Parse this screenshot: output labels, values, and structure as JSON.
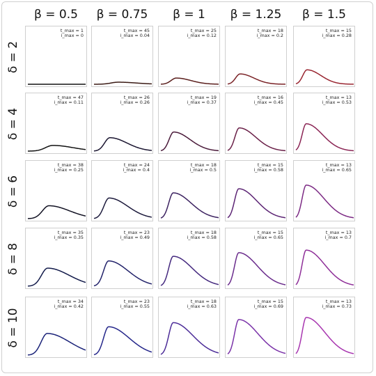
{
  "column_headers": [
    "β = 0.5",
    "β = 0.75",
    "β = 1",
    "β = 1.25",
    "β = 1.5"
  ],
  "row_headers": [
    "δ = 2",
    "δ = 4",
    "δ = 6",
    "δ = 8",
    "δ = 10"
  ],
  "colors": {
    "row_delta_2": [
      "#111111",
      "#3a1a14",
      "#5a1e1c",
      "#7a2226",
      "#992530"
    ],
    "row_delta_4": [
      "#111111",
      "#1a1530",
      "#4a1a3a",
      "#6a2048",
      "#8a2454"
    ],
    "row_delta_6": [
      "#111122",
      "#1c1a3c",
      "#3c2260",
      "#5c2474",
      "#7c2a84"
    ],
    "row_delta_8": [
      "#121a4a",
      "#22226a",
      "#44287e",
      "#6a2c8c",
      "#8e2e98"
    ],
    "row_delta_10": [
      "#1a2278",
      "#24268a",
      "#4c2c98",
      "#7a32a8",
      "#a836b0"
    ]
  },
  "chart_data": {
    "type": "line",
    "description_of_grid": "5x5 small multiples; columns vary beta, rows vary delta; each panel shows an epidemic-like curve i(t) with annotated peak time and peak value",
    "ylim": [
      0,
      1
    ],
    "panels": [
      {
        "row": "δ = 2",
        "col": "β = 0.5",
        "t_max_label": "t_max = 1",
        "i_max_label": "i_max = 0",
        "t_max": 1,
        "i_max": 0
      },
      {
        "row": "δ = 2",
        "col": "β = 0.75",
        "t_max_label": "t_max = 45",
        "i_max_label": "i_max = 0.04",
        "t_max": 45,
        "i_max": 0.04
      },
      {
        "row": "δ = 2",
        "col": "β = 1",
        "t_max_label": "t_max = 25",
        "i_max_label": "i_max = 0.12",
        "t_max": 25,
        "i_max": 0.12
      },
      {
        "row": "δ = 2",
        "col": "β = 1.25",
        "t_max_label": "t_max = 18",
        "i_max_label": "i_max = 0.2",
        "t_max": 18,
        "i_max": 0.2
      },
      {
        "row": "δ = 2",
        "col": "β = 1.5",
        "t_max_label": "t_max = 15",
        "i_max_label": "i_max = 0.28",
        "t_max": 15,
        "i_max": 0.28
      },
      {
        "row": "δ = 4",
        "col": "β = 0.5",
        "t_max_label": "t_max = 47",
        "i_max_label": "i_max = 0.11",
        "t_max": 47,
        "i_max": 0.11
      },
      {
        "row": "δ = 4",
        "col": "β = 0.75",
        "t_max_label": "t_max = 26",
        "i_max_label": "i_max = 0.26",
        "t_max": 26,
        "i_max": 0.26
      },
      {
        "row": "δ = 4",
        "col": "β = 1",
        "t_max_label": "t_max = 19",
        "i_max_label": "i_max = 0.37",
        "t_max": 19,
        "i_max": 0.37
      },
      {
        "row": "δ = 4",
        "col": "β = 1.25",
        "t_max_label": "t_max = 16",
        "i_max_label": "i_max = 0.45",
        "t_max": 16,
        "i_max": 0.45
      },
      {
        "row": "δ = 4",
        "col": "β = 1.5",
        "t_max_label": "t_max = 13",
        "i_max_label": "i_max = 0.53",
        "t_max": 13,
        "i_max": 0.53
      },
      {
        "row": "δ = 6",
        "col": "β = 0.5",
        "t_max_label": "t_max = 38",
        "i_max_label": "i_max = 0.25",
        "t_max": 38,
        "i_max": 0.25
      },
      {
        "row": "δ = 6",
        "col": "β = 0.75",
        "t_max_label": "t_max = 24",
        "i_max_label": "i_max = 0.4",
        "t_max": 24,
        "i_max": 0.4
      },
      {
        "row": "δ = 6",
        "col": "β = 1",
        "t_max_label": "t_max = 18",
        "i_max_label": "i_max = 0.5",
        "t_max": 18,
        "i_max": 0.5
      },
      {
        "row": "δ = 6",
        "col": "β = 1.25",
        "t_max_label": "t_max = 15",
        "i_max_label": "i_max = 0.58",
        "t_max": 15,
        "i_max": 0.58
      },
      {
        "row": "δ = 6",
        "col": "β = 1.5",
        "t_max_label": "t_max = 13",
        "i_max_label": "i_max = 0.65",
        "t_max": 13,
        "i_max": 0.65
      },
      {
        "row": "δ = 8",
        "col": "β = 0.5",
        "t_max_label": "t_max = 35",
        "i_max_label": "i_max = 0.35",
        "t_max": 35,
        "i_max": 0.35
      },
      {
        "row": "δ = 8",
        "col": "β = 0.75",
        "t_max_label": "t_max = 23",
        "i_max_label": "i_max = 0.49",
        "t_max": 23,
        "i_max": 0.49
      },
      {
        "row": "δ = 8",
        "col": "β = 1",
        "t_max_label": "t_max = 18",
        "i_max_label": "i_max = 0.58",
        "t_max": 18,
        "i_max": 0.58
      },
      {
        "row": "δ = 8",
        "col": "β = 1.25",
        "t_max_label": "t_max = 15",
        "i_max_label": "i_max = 0.65",
        "t_max": 15,
        "i_max": 0.65
      },
      {
        "row": "δ = 8",
        "col": "β = 1.5",
        "t_max_label": "t_max = 13",
        "i_max_label": "i_max = 0.7",
        "t_max": 13,
        "i_max": 0.7
      },
      {
        "row": "δ = 10",
        "col": "β = 0.5",
        "t_max_label": "t_max = 34",
        "i_max_label": "i_max = 0.42",
        "t_max": 34,
        "i_max": 0.42
      },
      {
        "row": "δ = 10",
        "col": "β = 0.75",
        "t_max_label": "t_max = 23",
        "i_max_label": "i_max = 0.55",
        "t_max": 23,
        "i_max": 0.55
      },
      {
        "row": "δ = 10",
        "col": "β = 1",
        "t_max_label": "t_max = 18",
        "i_max_label": "i_max = 0.63",
        "t_max": 18,
        "i_max": 0.63
      },
      {
        "row": "δ = 10",
        "col": "β = 1.25",
        "t_max_label": "t_max = 15",
        "i_max_label": "i_max = 0.69",
        "t_max": 15,
        "i_max": 0.69
      },
      {
        "row": "δ = 10",
        "col": "β = 1.5",
        "t_max_label": "t_max = 13",
        "i_max_label": "i_max = 0.73",
        "t_max": 13,
        "i_max": 0.73
      }
    ]
  }
}
